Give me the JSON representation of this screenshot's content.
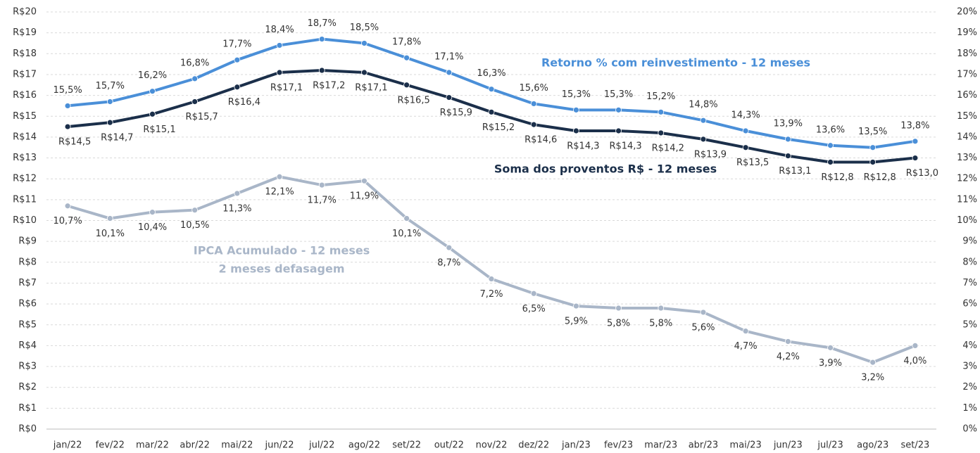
{
  "chart_data": {
    "type": "line",
    "categories": [
      "jan/22",
      "fev/22",
      "mar/22",
      "abr/22",
      "mai/22",
      "jun/22",
      "jul/22",
      "ago/22",
      "set/22",
      "out/22",
      "nov/22",
      "dez/22",
      "jan/23",
      "fev/23",
      "mar/23",
      "abr/23",
      "mai/23",
      "jun/23",
      "jul/23",
      "ago/23",
      "set/23"
    ],
    "series": [
      {
        "name": "Retorno % com reinvestimento - 12 meses",
        "color": "#4a8fd8",
        "axis": "y2",
        "values": [
          15.5,
          15.7,
          16.2,
          16.8,
          17.7,
          18.4,
          18.7,
          18.5,
          17.8,
          17.1,
          16.3,
          15.6,
          15.3,
          15.3,
          15.2,
          14.8,
          14.3,
          13.9,
          13.6,
          13.5,
          13.8
        ],
        "value_labels": [
          "15,5%",
          "15,7%",
          "16,2%",
          "16,8%",
          "17,7%",
          "18,4%",
          "18,7%",
          "18,5%",
          "17,8%",
          "17,1%",
          "16,3%",
          "15,6%",
          "15,3%",
          "15,3%",
          "15,2%",
          "14,8%",
          "14,3%",
          "13,9%",
          "13,6%",
          "13,5%",
          "13,8%"
        ]
      },
      {
        "name": "Soma dos proventos R$ - 12 meses",
        "color": "#1b2f4a",
        "values": [
          14.5,
          14.7,
          15.1,
          15.7,
          16.4,
          17.1,
          17.2,
          17.1,
          16.5,
          15.9,
          15.2,
          14.6,
          14.3,
          14.3,
          14.2,
          13.9,
          13.5,
          13.1,
          12.8,
          12.8,
          13.0
        ],
        "value_labels": [
          "R$14,5",
          "R$14,7",
          "R$15,1",
          "R$15,7",
          "R$16,4",
          "R$17,1",
          "R$17,2",
          "R$17,1",
          "R$16,5",
          "R$15,9",
          "R$15,2",
          "R$14,6",
          "R$14,3",
          "R$14,3",
          "R$14,2",
          "R$13,9",
          "R$13,5",
          "R$13,1",
          "R$12,8",
          "R$12,8",
          "R$13,0"
        ]
      },
      {
        "name": "IPCA Acumulado - 12 meses",
        "color": "#a9b6c8",
        "axis": "y2",
        "values": [
          10.7,
          10.1,
          10.4,
          10.5,
          11.3,
          12.1,
          11.7,
          11.9,
          10.1,
          8.7,
          7.2,
          6.5,
          5.9,
          5.8,
          5.8,
          5.6,
          4.7,
          4.2,
          3.9,
          3.2,
          4.0
        ],
        "value_labels": [
          "10,7%",
          "10,1%",
          "10,4%",
          "10,5%",
          "11,3%",
          "12,1%",
          "11,7%",
          "11,9%",
          "10,1%",
          "8,7%",
          "7,2%",
          "6,5%",
          "5,9%",
          "5,8%",
          "5,8%",
          "5,6%",
          "4,7%",
          "4,2%",
          "3,9%",
          "3,2%",
          "4,0%"
        ]
      }
    ],
    "annotations": [
      "2 meses defasagem"
    ],
    "ylim": [
      0,
      20
    ],
    "yticks": [
      {
        "value": 0,
        "label": "R$0"
      },
      {
        "value": 1,
        "label": "R$1"
      },
      {
        "value": 2,
        "label": "R$2"
      },
      {
        "value": 3,
        "label": "R$3"
      },
      {
        "value": 4,
        "label": "R$4"
      },
      {
        "value": 5,
        "label": "R$5"
      },
      {
        "value": 6,
        "label": "R$6"
      },
      {
        "value": 7,
        "label": "R$7"
      },
      {
        "value": 8,
        "label": "R$8"
      },
      {
        "value": 9,
        "label": "R$9"
      },
      {
        "value": 10,
        "label": "R$10"
      },
      {
        "value": 11,
        "label": "R$11"
      },
      {
        "value": 12,
        "label": "R$12"
      },
      {
        "value": 13,
        "label": "R$13"
      },
      {
        "value": 14,
        "label": "R$14"
      },
      {
        "value": 15,
        "label": "R$15"
      },
      {
        "value": 16,
        "label": "R$16"
      },
      {
        "value": 17,
        "label": "R$17"
      },
      {
        "value": 18,
        "label": "R$18"
      },
      {
        "value": 19,
        "label": "R$19"
      },
      {
        "value": 20,
        "label": "R$20"
      }
    ],
    "y2lim": [
      0,
      20
    ],
    "y2ticks": [
      {
        "value": 0,
        "label": "0%"
      },
      {
        "value": 1,
        "label": "1%"
      },
      {
        "value": 2,
        "label": "2%"
      },
      {
        "value": 3,
        "label": "3%"
      },
      {
        "value": 4,
        "label": "4%"
      },
      {
        "value": 5,
        "label": "5%"
      },
      {
        "value": 6,
        "label": "6%"
      },
      {
        "value": 7,
        "label": "7%"
      },
      {
        "value": 8,
        "label": "8%"
      },
      {
        "value": 9,
        "label": "9%"
      },
      {
        "value": 10,
        "label": "10%"
      },
      {
        "value": 11,
        "label": "11%"
      },
      {
        "value": 12,
        "label": "12%"
      },
      {
        "value": 13,
        "label": "13%"
      },
      {
        "value": 14,
        "label": "14%"
      },
      {
        "value": 15,
        "label": "15%"
      },
      {
        "value": 16,
        "label": "16%"
      },
      {
        "value": 17,
        "label": "17%"
      },
      {
        "value": 18,
        "label": "18%"
      },
      {
        "value": 19,
        "label": "19%"
      },
      {
        "value": 20,
        "label": "20%"
      }
    ],
    "grid": true
  }
}
